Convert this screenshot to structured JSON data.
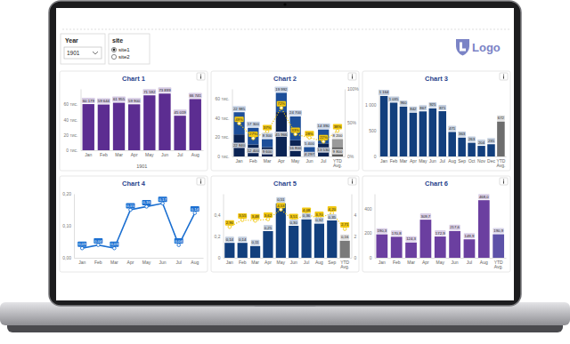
{
  "page": {
    "year_slicer": {
      "title": "Year",
      "value": "1901"
    },
    "site_slicer": {
      "title": "site",
      "options": [
        "site1",
        "site2"
      ],
      "selected": "site1"
    },
    "logo": "Logo"
  },
  "chart_data": [
    {
      "type": "bar",
      "title": "Chart 1",
      "categories": [
        "Jan",
        "Feb",
        "Mar",
        "Apr",
        "May",
        "Jun",
        "Jul",
        "Aug"
      ],
      "xlabel": "1901",
      "values": [
        60179,
        59644,
        61955,
        59900,
        71592,
        73899,
        45019,
        66741
      ],
      "value_labels": [
        "60 179",
        "59 644",
        "61 955",
        "59 900",
        "71 592",
        "73 899",
        "45 019",
        "66 741"
      ],
      "color": "#5c2d91",
      "ylim": [
        0,
        80000
      ],
      "yticks": [
        {
          "value": 0,
          "label": "0 тис."
        },
        {
          "value": 20000,
          "label": "20 тис."
        },
        {
          "value": 40000,
          "label": "40 тис."
        },
        {
          "value": 60000,
          "label": "60 тис."
        }
      ],
      "data_labels": true
    },
    {
      "type": "bar",
      "title": "Chart 2",
      "categories": [
        "Jan",
        "Feb",
        "Mar",
        "Apr",
        "May",
        "Jun",
        "Jul",
        "YTD Avg."
      ],
      "stacked": true,
      "series": [
        {
          "values": [
            22840,
            12400,
            9600,
            45966,
            16800,
            4297,
            13530,
            9800
          ],
          "value_labels": [
            "22 840",
            "12 400",
            "9 600",
            "45 966",
            "16 800",
            "4 297",
            "13 530",
            "9 800"
          ],
          "colors": [
            "#0b2454",
            "#0b2454",
            "#0b2454",
            "#0b2454",
            "#0b2454",
            "#0b2454",
            "#0b2454",
            "#5c5c5c"
          ]
        },
        {
          "values": [
            22985,
            17300,
            8300,
            19992,
            24700,
            5400,
            14390,
            8200
          ],
          "value_labels": [
            "22 985",
            "17 300",
            "8 300",
            "19 992",
            "24 700",
            "5 400",
            "14 390",
            "8 200"
          ],
          "colors": [
            "#1d4f9a",
            "#1d4f9a",
            "#1d4f9a",
            "#1d4f9a",
            "#1d4f9a",
            "#1d4f9a",
            "#1d4f9a",
            "#9a9a9a"
          ]
        },
        {
          "type": "line",
          "axis": "y2",
          "color": "#f2c811",
          "marker": "circle",
          "line_style": "dotted",
          "values": [
            49,
            27,
            37,
            72,
            33,
            28,
            22,
            38
          ],
          "value_labels": [
            "49%",
            "27%",
            "37%",
            "72%",
            "33%",
            "28%",
            "22%",
            "38%"
          ]
        }
      ],
      "ylim": [
        0,
        70000
      ],
      "yticks": [
        {
          "value": 0,
          "label": "0 тис."
        },
        {
          "value": 20000,
          "label": "20 тис."
        },
        {
          "value": 40000,
          "label": "40 тис."
        },
        {
          "value": 60000,
          "label": "60 тис."
        }
      ],
      "y2lim": [
        0,
        100
      ],
      "y2ticks": [
        {
          "value": 0,
          "label": "0%"
        },
        {
          "value": 50,
          "label": "50%"
        },
        {
          "value": 100,
          "label": "100%"
        }
      ],
      "data_labels": true
    },
    {
      "type": "bar",
      "title": "Chart 3",
      "categories": [
        "Jan",
        "Feb",
        "Mar",
        "Apr",
        "May",
        "Jun",
        "Jul",
        "Aug",
        "Sep",
        "Oct",
        "Nov",
        "Dec",
        "YTD Avg."
      ],
      "values": [
        1164,
        1035,
        960,
        842,
        867,
        925,
        871,
        471,
        363,
        263,
        204,
        235,
        672
      ],
      "value_labels": [
        "1 164",
        "1 035",
        "960",
        "842",
        "867",
        "925",
        "871",
        "471",
        "363",
        "263",
        "204",
        "235",
        "672"
      ],
      "colors": [
        "#123f7d",
        "#123f7d",
        "#123f7d",
        "#123f7d",
        "#123f7d",
        "#123f7d",
        "#123f7d",
        "#123f7d",
        "#123f7d",
        "#123f7d",
        "#123f7d",
        "#123f7d",
        "#6d6d6d"
      ],
      "ylim": [
        0,
        1300
      ],
      "yticks": [
        0,
        500,
        {
          "value": 1000,
          "label": "1 000"
        }
      ],
      "data_labels": true
    },
    {
      "type": "line",
      "title": "Chart 4",
      "categories": [
        "Jan",
        "Feb",
        "Mar",
        "Apr",
        "May",
        "Jun",
        "Jul",
        "Aug"
      ],
      "values": [
        0.03,
        0.04,
        0.03,
        0.15,
        0.16,
        0.17,
        0.04,
        0.14
      ],
      "value_labels": [
        "0,03",
        "0,04",
        "0,03",
        "0,15",
        "0,16",
        "0,17",
        "0,04",
        "0,14"
      ],
      "color": "#1b6fd1",
      "marker": "circle",
      "line_style": "solid",
      "ylim": [
        0,
        0.2
      ],
      "yticks": [
        {
          "value": 0,
          "label": "0,00"
        },
        {
          "value": 0.1,
          "label": "0,10"
        },
        {
          "value": 0.2,
          "label": "0,20"
        }
      ],
      "data_labels": true
    },
    {
      "type": "bar",
      "title": "Chart 5",
      "categories": [
        "Jan",
        "Feb",
        "Mar",
        "Apr",
        "May",
        "Jun",
        "Jul",
        "Aug",
        "Sep",
        "YTD Avg."
      ],
      "series": [
        {
          "values": [
            0.14,
            0.14,
            0.11,
            0.25,
            0.51,
            0.3,
            0.36,
            0.32,
            0.35,
            0.16
          ],
          "value_labels": [
            "0,14",
            "0,14",
            "0,11",
            "0,25",
            "0,51",
            "0,30",
            "0,36",
            "0,32",
            "0,35",
            "0,16"
          ],
          "colors": [
            "#123f7d",
            "#123f7d",
            "#123f7d",
            "#123f7d",
            "#123f7d",
            "#123f7d",
            "#123f7d",
            "#123f7d",
            "#123f7d",
            "#7a7a7a"
          ]
        },
        {
          "type": "line",
          "axis": "y2",
          "color": "#f2c811",
          "marker": "circle",
          "line_style": "dotted",
          "values": [
            2.9,
            3.55,
            3.48,
            3.62,
            4.53,
            3.51,
            4.08,
            3.7,
            4.2,
            2.71
          ],
          "value_labels": [
            "2,90",
            "3,55",
            "3,48",
            "3,62",
            "4,53",
            "3,51",
            "4,08",
            "3,70",
            "4,20",
            "2,71"
          ]
        }
      ],
      "ylim": [
        0,
        0.6
      ],
      "yticks": [
        0,
        {
          "value": 0.2,
          "label": "0,2"
        },
        {
          "value": 0.4,
          "label": "0,4"
        }
      ],
      "y2lim": [
        0,
        6
      ],
      "y2ticks": [
        0,
        2,
        4
      ],
      "data_labels": true
    },
    {
      "type": "bar",
      "title": "Chart 6",
      "categories": [
        "Jan",
        "Feb",
        "Mar",
        "Apr",
        "May",
        "Jun",
        "Jul",
        "Aug",
        "YTD Avg."
      ],
      "values": [
        190.3,
        170.8,
        124.3,
        309.7,
        172.9,
        217.6,
        149.9,
        468,
        190.9
      ],
      "value_labels": [
        "190,3",
        "170,8",
        "124,3",
        "309,7",
        "172,9",
        "217,6",
        "149,9",
        "468,0",
        "190,9"
      ],
      "colors": [
        "#6b3fa0",
        "#6b3fa0",
        "#6b3fa0",
        "#6b3fa0",
        "#6b3fa0",
        "#6b3fa0",
        "#6b3fa0",
        "#6b3fa0",
        "#5d52a8"
      ],
      "ylim": [
        0,
        520
      ],
      "yticks": [
        0,
        200,
        400
      ],
      "data_labels": true
    }
  ]
}
